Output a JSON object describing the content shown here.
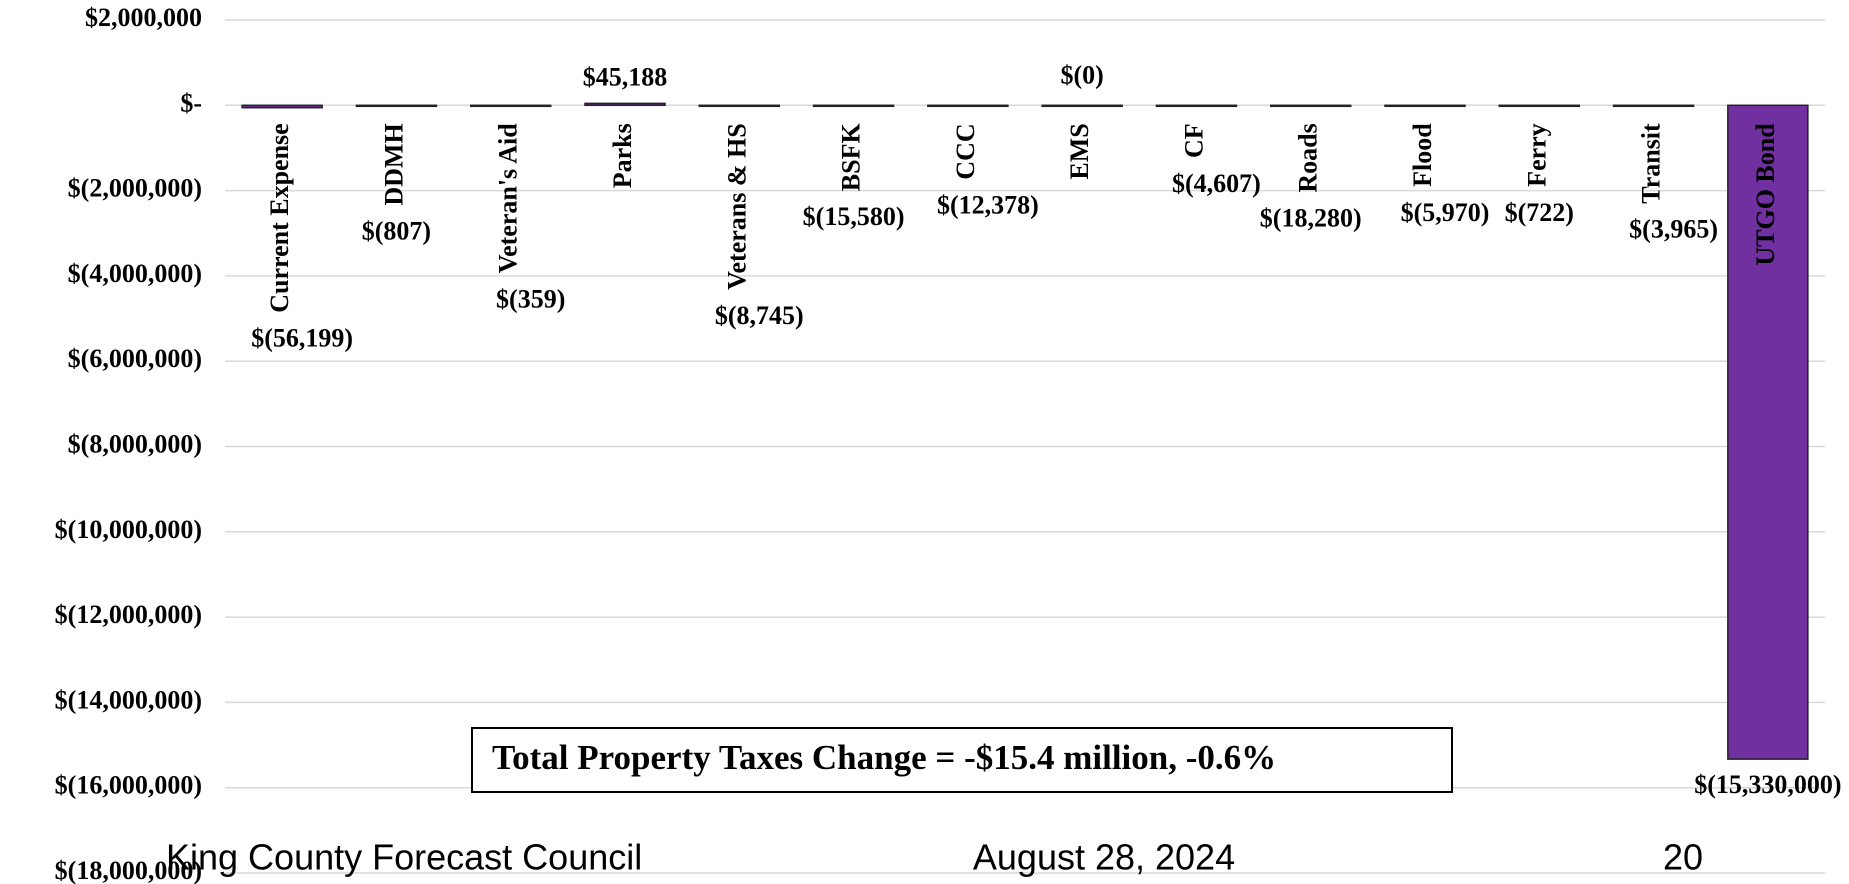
{
  "chart_data": {
    "type": "bar",
    "categories": [
      "Current Expense",
      "DDMH",
      "Veteran's Aid",
      "Parks",
      "Veterans & HS",
      "BSFK",
      "CCC",
      "EMS",
      "CF",
      "Roads",
      "Flood",
      "Ferry",
      "Transit",
      "UTGO Bond"
    ],
    "values": [
      -56199,
      -807,
      -359,
      45188,
      -8745,
      -15580,
      -12378,
      0,
      -4607,
      -18280,
      -5970,
      -722,
      -3965,
      -15330000
    ],
    "value_labels": [
      "$(56,199)",
      "$(807)",
      "$(359)",
      "$45,188",
      "$(8,745)",
      "$(15,580)",
      "$(12,378)",
      "$(0)",
      "$(4,607)",
      "$(18,280)",
      "$(5,970)",
      "$(722)",
      "$(3,965)",
      "$(15,330,000)"
    ],
    "color": "#7030a0",
    "ylim": [
      -18000000,
      2000000
    ],
    "yticks": [
      {
        "value": 2000000,
        "label": "$2,000,000"
      },
      {
        "value": 0,
        "label": "$-"
      },
      {
        "value": -2000000,
        "label": "$(2,000,000)"
      },
      {
        "value": -4000000,
        "label": "$(4,000,000)"
      },
      {
        "value": -6000000,
        "label": "$(6,000,000)"
      },
      {
        "value": -8000000,
        "label": "$(8,000,000)"
      },
      {
        "value": -10000000,
        "label": "$(10,000,000)"
      },
      {
        "value": -12000000,
        "label": "$(12,000,000)"
      },
      {
        "value": -14000000,
        "label": "$(14,000,000)"
      },
      {
        "value": -16000000,
        "label": "$(16,000,000)"
      },
      {
        "value": -18000000,
        "label": "$(18,000,000)"
      }
    ],
    "grid": true,
    "annotation": "Total Property Taxes Change = -$15.4 million, -0.6%"
  },
  "footer": {
    "left": "King County Forecast Council",
    "center": "August 28, 2024",
    "right": "20"
  }
}
